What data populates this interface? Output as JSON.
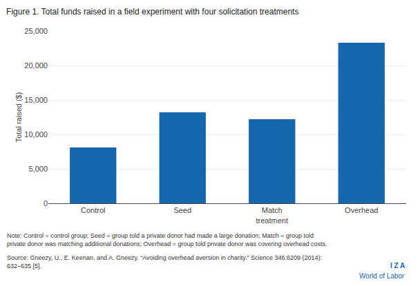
{
  "chart_data": {
    "type": "bar",
    "title": "Figure 1. Total funds raised in a field experiment with four solicitation treatments",
    "categories": [
      "Control",
      "Seed",
      "Match\ntreatment",
      "Overhead"
    ],
    "values": [
      8100,
      13200,
      12200,
      23300
    ],
    "color": "#1566AC",
    "ylabel": "Total raised ($)",
    "ylim": [
      0,
      25000
    ],
    "yticks": [
      0,
      {
        "value": 5000,
        "label": "5,000"
      },
      {
        "value": 10000,
        "label": "10,000"
      },
      {
        "value": 15000,
        "label": "15,000"
      },
      {
        "value": 20000,
        "label": "20,000"
      },
      {
        "value": 25000,
        "label": "25,000"
      }
    ],
    "grid": true,
    "annotations": [
      "Note: Control = control group; Seed = group told a private donor had made a large donation; Match = group told\nprivate donor was matching additional donations; Overhead = group told private donor was covering overhead costs.",
      "Source: Gneezy, U., E. Keenan, and A. Gneezy. “Avoiding overhead aversion in charity.” Science 346:6209 (2014):\n632–635 [5].",
      "I Z A",
      "World of Labor"
    ]
  }
}
